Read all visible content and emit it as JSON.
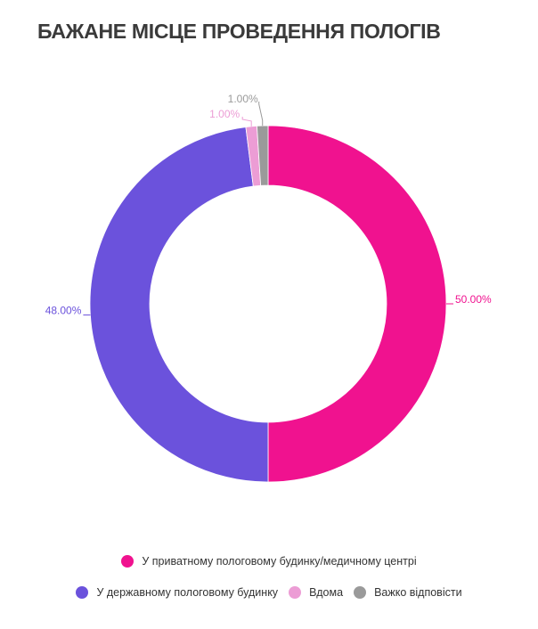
{
  "chart_data": {
    "type": "donut",
    "title": "БАЖАНЕ МІСЦЕ ПРОВЕДЕННЯ ПОЛОГІВ",
    "categories": [
      "У приватному пологовому будинку/медичному центрі",
      "У державному пологовому будинку",
      "Вдома",
      "Важко відповісти"
    ],
    "values": [
      50,
      48,
      1,
      1
    ],
    "value_labels": [
      "50.00%",
      "48.00%",
      "1.00%",
      "1.00%"
    ],
    "colors": [
      "#f0128f",
      "#6b52dc",
      "#ec9dd5",
      "#9a9a9a"
    ]
  }
}
